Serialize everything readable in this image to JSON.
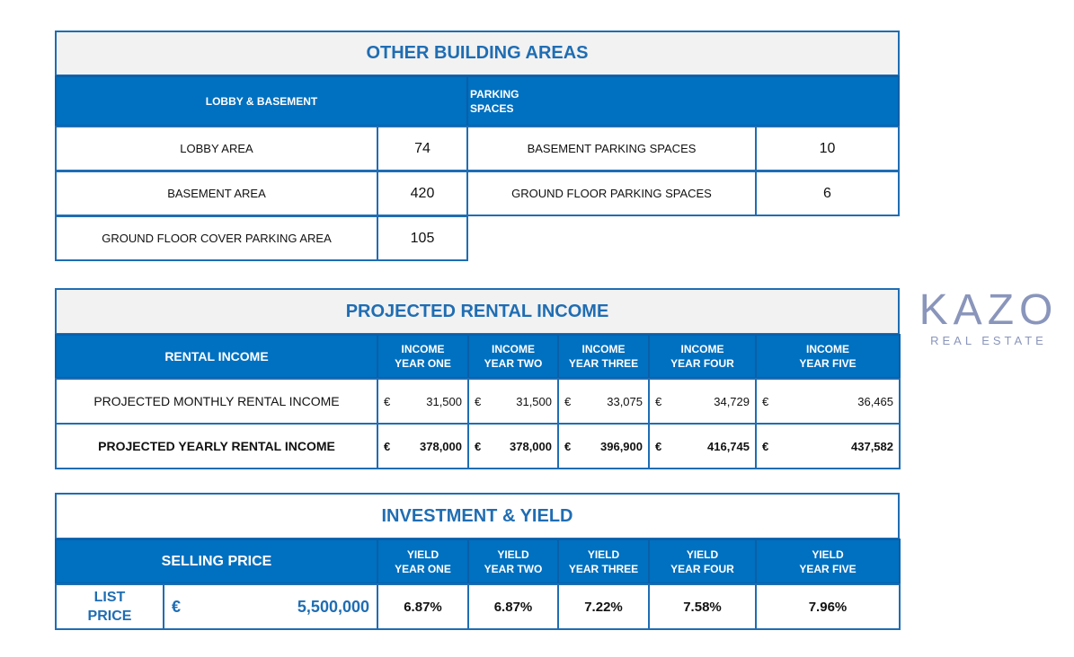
{
  "watermark": {
    "brand": "KAZO",
    "tagline": "REAL ESTATE"
  },
  "other_building_areas": {
    "title": "OTHER BUILDING AREAS",
    "lobby_header": "LOBBY & BASEMENT",
    "parking_header": "PARKING\nSPACES",
    "lobby_rows": [
      {
        "label": "LOBBY AREA",
        "value": "74"
      },
      {
        "label": "BASEMENT AREA",
        "value": "420"
      },
      {
        "label": "GROUND FLOOR COVER PARKING AREA",
        "value": "105"
      }
    ],
    "parking_rows": [
      {
        "label": "BASEMENT PARKING SPACES",
        "value": "10"
      },
      {
        "label": "GROUND FLOOR PARKING SPACES",
        "value": "6"
      }
    ]
  },
  "rental_income": {
    "title": "PROJECTED RENTAL INCOME",
    "header": "RENTAL INCOME",
    "years": [
      "INCOME\nYEAR ONE",
      "INCOME\nYEAR TWO",
      "INCOME\nYEAR THREE",
      "INCOME\nYEAR FOUR",
      "INCOME\nYEAR FIVE"
    ],
    "currency": "€",
    "monthly": {
      "label": "PROJECTED MONTHLY RENTAL INCOME",
      "values": [
        "31,500",
        "31,500",
        "33,075",
        "34,729",
        "36,465"
      ]
    },
    "yearly": {
      "label": "PROJECTED YEARLY RENTAL INCOME",
      "values": [
        "378,000",
        "378,000",
        "396,900",
        "416,745",
        "437,582"
      ]
    }
  },
  "investment": {
    "title": "INVESTMENT & YIELD",
    "header": "SELLING PRICE",
    "years": [
      "YIELD\nYEAR ONE",
      "YIELD\nYEAR TWO",
      "YIELD\nYEAR THREE",
      "YIELD\nYEAR FOUR",
      "YIELD\nYEAR FIVE"
    ],
    "list_label": "LIST\nPRICE",
    "currency": "€",
    "price": "5,500,000",
    "yields": [
      "6.87%",
      "6.87%",
      "7.22%",
      "7.58%",
      "7.96%"
    ]
  }
}
